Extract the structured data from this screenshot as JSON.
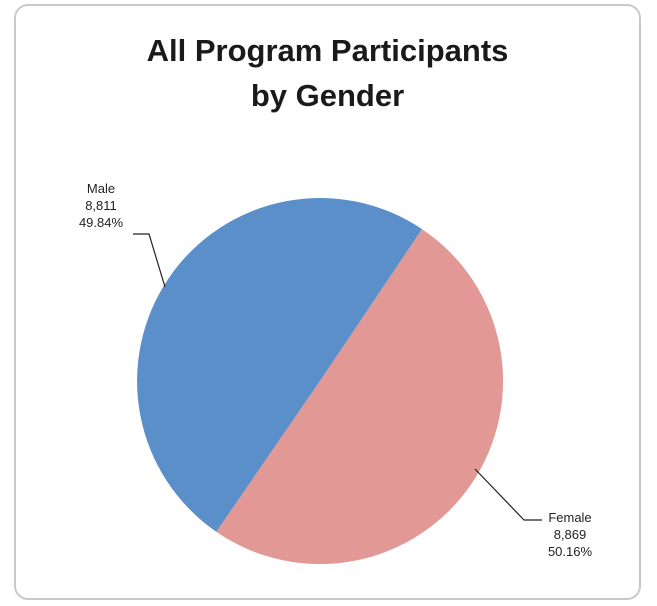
{
  "chart_data": {
    "type": "pie",
    "title": [
      "All Program Participants",
      "by Gender"
    ],
    "slices": [
      {
        "label": "Male",
        "value": 8811,
        "value_label": "8,811",
        "percent_label": "49.84%",
        "color": "#5b8fc9"
      },
      {
        "label": "Female",
        "value": 8869,
        "value_label": "8,869",
        "percent_label": "50.16%",
        "color": "#e29895"
      }
    ],
    "legend": "none"
  }
}
